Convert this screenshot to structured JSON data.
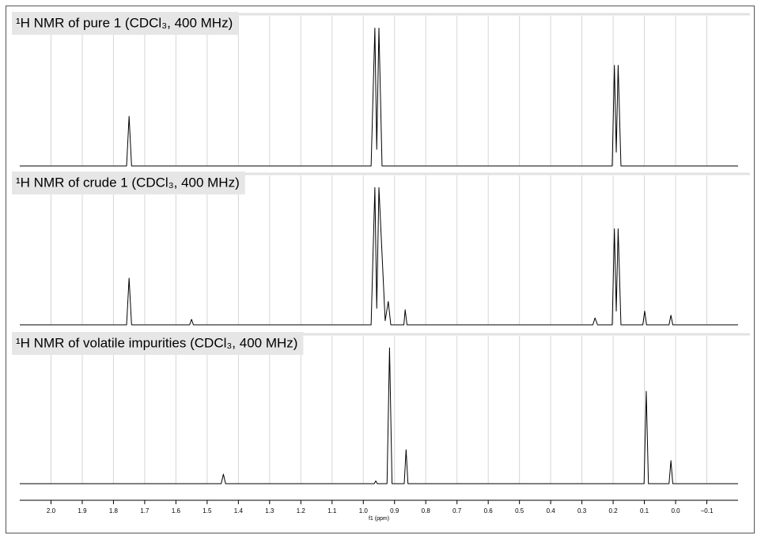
{
  "chart_data": [
    {
      "type": "line",
      "title": "¹H NMR of pure 1 (CDCl₃, 400 MHz)",
      "color": "#000000",
      "grid": true,
      "xlim": [
        2.1,
        -0.2
      ],
      "ylim": [
        0,
        110
      ],
      "x": [
        2.1,
        1.758,
        1.75,
        1.742,
        0.975,
        0.963,
        0.957,
        0.95,
        0.94,
        0.203,
        0.196,
        0.19,
        0.184,
        0.175,
        -0.2
      ],
      "values": [
        0,
        0,
        36,
        0,
        0,
        100,
        12,
        100,
        0,
        0,
        73,
        10,
        73,
        0,
        0
      ]
    },
    {
      "type": "line",
      "title": "¹H NMR of crude 1 (CDCl₃, 400 MHz)",
      "color": "#000000",
      "grid": true,
      "xlim": [
        2.1,
        -0.2
      ],
      "ylim": [
        0,
        110
      ],
      "x": [
        2.1,
        1.758,
        1.75,
        1.742,
        1.556,
        1.55,
        1.544,
        0.975,
        0.963,
        0.957,
        0.95,
        0.93,
        0.92,
        0.912,
        0.87,
        0.866,
        0.86,
        0.265,
        0.258,
        0.25,
        0.203,
        0.196,
        0.19,
        0.184,
        0.175,
        0.105,
        0.099,
        0.093,
        0.021,
        0.015,
        0.009,
        -0.2
      ],
      "values": [
        0,
        0,
        34,
        0,
        0,
        4,
        0,
        0,
        100,
        12,
        100,
        3,
        17,
        0,
        0,
        11,
        0,
        0,
        5,
        0,
        0,
        70,
        10,
        70,
        0,
        0,
        10,
        0,
        0,
        7,
        0,
        0
      ]
    },
    {
      "type": "line",
      "title": "¹H NMR of volatile impurities (CDCl₃, 400 MHz)",
      "color": "#000000",
      "grid": true,
      "xlim": [
        2.1,
        -0.2
      ],
      "ylim": [
        0,
        110
      ],
      "xlabel": "f1 (ppm)",
      "xticks": [
        {
          "value": 2,
          "label": "2.0"
        },
        1.9,
        1.8,
        1.7,
        1.6,
        1.5,
        1.4,
        1.3,
        1.2,
        1.1,
        {
          "value": 1,
          "label": "1.0"
        },
        0.9,
        0.8,
        0.7,
        0.6,
        0.5,
        0.4,
        0.3,
        0.2,
        0.1,
        {
          "value": 0,
          "label": "0.0"
        },
        {
          "value": -0.1,
          "label": "−0.1"
        }
      ],
      "x": [
        2.1,
        1.455,
        1.448,
        1.441,
        0.965,
        0.96,
        0.955,
        0.924,
        0.916,
        0.908,
        0.869,
        0.863,
        0.857,
        0.101,
        0.094,
        0.087,
        0.021,
        0.015,
        0.009,
        -0.2
      ],
      "values": [
        0,
        0,
        7,
        0,
        0,
        2,
        0,
        0,
        100,
        0,
        0,
        25,
        0,
        0,
        68,
        0,
        0,
        17,
        0,
        0
      ]
    }
  ]
}
